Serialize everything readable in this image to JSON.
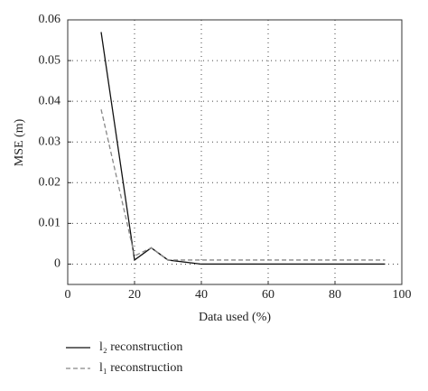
{
  "chart_data": {
    "type": "line",
    "x_label": "Data used (%)",
    "y_label": "MSE (m)",
    "x": [
      10,
      20,
      25,
      30,
      40,
      50,
      60,
      70,
      80,
      90,
      95
    ],
    "series": [
      {
        "name": "l₂ reconstruction",
        "color": "#111111",
        "dash": "solid",
        "values": [
          0.057,
          0.001,
          0.004,
          0.001,
          0,
          0,
          0,
          0,
          0,
          0,
          0
        ]
      },
      {
        "name": "l₁ reconstruction",
        "color": "#888888",
        "dash": "dashed",
        "values": [
          0.038,
          0.002,
          0.004,
          0.001,
          0.001,
          0.001,
          0.001,
          0.001,
          0.001,
          0.001,
          0.001
        ]
      }
    ],
    "xlim": [
      0,
      100
    ],
    "xticks": [
      0,
      20,
      40,
      60,
      80,
      100
    ],
    "ylim": [
      -0.005,
      0.06
    ],
    "yticks": [
      0,
      0.01,
      0.02,
      0.03,
      0.04,
      0.05,
      0.06
    ],
    "grid": true
  }
}
